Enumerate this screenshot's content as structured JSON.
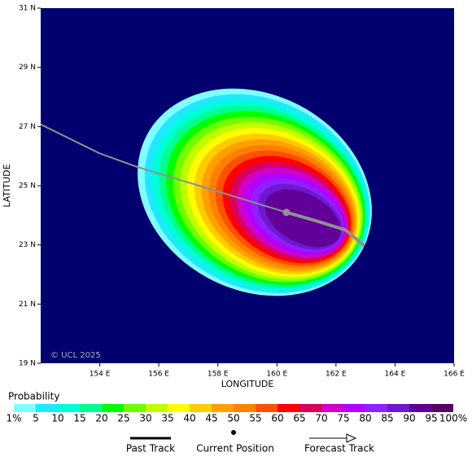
{
  "map": {
    "background": "#00006e",
    "xaxis": {
      "label": "LONGITUDE",
      "lim": [
        152,
        166
      ],
      "ticks": [
        {
          "value": 154,
          "label": "154 E"
        },
        {
          "value": 156,
          "label": "156 E"
        },
        {
          "value": 158,
          "label": "158 E"
        },
        {
          "value": 160,
          "label": "160 E"
        },
        {
          "value": 162,
          "label": "162 E"
        },
        {
          "value": 164,
          "label": "164 E"
        },
        {
          "value": 166,
          "label": "166 E"
        }
      ]
    },
    "yaxis": {
      "label": "LATITUDE",
      "lim": [
        19,
        31
      ],
      "ticks": [
        {
          "value": 19,
          "label": "19 N"
        },
        {
          "value": 21,
          "label": "21 N"
        },
        {
          "value": 23,
          "label": "23 N"
        },
        {
          "value": 25,
          "label": "25 N"
        },
        {
          "value": 27,
          "label": "27 N"
        },
        {
          "value": 29,
          "label": "29 N"
        },
        {
          "value": 31,
          "label": "31 N"
        }
      ]
    },
    "copyright": "© UCL 2025",
    "past_track": {
      "name": "Past Track",
      "color": "#909090",
      "lon": [
        152,
        153.98,
        155.25,
        160.32
      ],
      "lat": [
        27.07,
        26.1,
        25.64,
        24.1
      ]
    },
    "current_position": {
      "name": "Current Position",
      "color": "#909090",
      "lon": 160.32,
      "lat": 24.1
    },
    "forecast_track": {
      "name": "Forecast Track",
      "color": "#909090",
      "lon": [
        160.32,
        161.37,
        162.33,
        162.96
      ],
      "lat": [
        24.1,
        23.8,
        23.5,
        22.97
      ]
    },
    "probability": {
      "title": "Probability",
      "levels": [
        {
          "value": 1,
          "label": "1%"
        },
        5,
        10,
        15,
        20,
        25,
        30,
        35,
        40,
        45,
        50,
        55,
        60,
        65,
        70,
        75,
        80,
        85,
        90,
        95,
        {
          "value": 100,
          "label": "100%"
        }
      ],
      "colors": [
        "#80ffff",
        "#20e8ff",
        "#00ffd8",
        "#00ff90",
        "#00ff00",
        "#70ff00",
        "#c0ff00",
        "#ffff00",
        "#ffcc00",
        "#ffa000",
        "#ff8000",
        "#ff5000",
        "#ff0000",
        "#d8005a",
        "#d000c8",
        "#b000ff",
        "#9020ff",
        "#7018d0",
        "#600098",
        "#5a0060"
      ]
    }
  }
}
